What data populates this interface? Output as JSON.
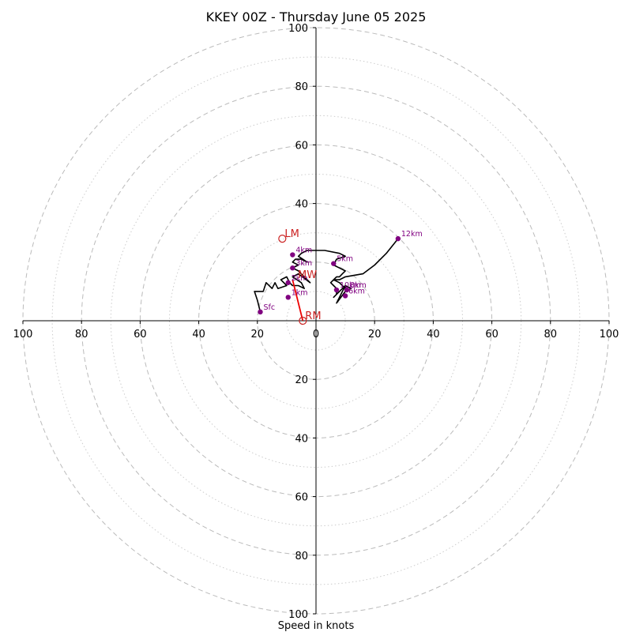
{
  "chart_data": {
    "type": "scatter",
    "subtype": "hodograph",
    "title": "KKEY 00Z - Thursday June 05 2025",
    "xlabel": "Speed in knots",
    "ylabel": "",
    "xlim": [
      -100,
      100
    ],
    "ylim": [
      -100,
      100
    ],
    "grid": true,
    "ring_major": [
      20,
      40,
      60,
      80,
      100
    ],
    "ring_minor": [
      10,
      30,
      50,
      70,
      90
    ],
    "x_ticks": [
      {
        "v": -100,
        "label": "100"
      },
      {
        "v": -80,
        "label": "80"
      },
      {
        "v": -60,
        "label": "60"
      },
      {
        "v": -40,
        "label": "40"
      },
      {
        "v": -20,
        "label": "20"
      },
      {
        "v": 0,
        "label": "0"
      },
      {
        "v": 20,
        "label": "20"
      },
      {
        "v": 40,
        "label": "40"
      },
      {
        "v": 60,
        "label": "60"
      },
      {
        "v": 80,
        "label": "80"
      },
      {
        "v": 100,
        "label": "100"
      }
    ],
    "y_ticks": [
      {
        "v": 100,
        "label": "100"
      },
      {
        "v": 80,
        "label": "80"
      },
      {
        "v": 60,
        "label": "60"
      },
      {
        "v": 40,
        "label": "40"
      },
      {
        "v": -20,
        "label": "20"
      },
      {
        "v": -40,
        "label": "40"
      },
      {
        "v": -60,
        "label": "60"
      },
      {
        "v": -80,
        "label": "80"
      },
      {
        "v": -100,
        "label": "100"
      }
    ],
    "hodograph_trace": [
      [
        -19,
        3
      ],
      [
        -20,
        7
      ],
      [
        -21,
        10
      ],
      [
        -18,
        10
      ],
      [
        -17,
        13
      ],
      [
        -15,
        11
      ],
      [
        -14,
        13
      ],
      [
        -13,
        11
      ],
      [
        -10,
        12
      ],
      [
        -12,
        14
      ],
      [
        -10,
        15
      ],
      [
        -9,
        13
      ],
      [
        -8,
        12
      ],
      [
        -6,
        12
      ],
      [
        -4,
        11
      ],
      [
        -5,
        13
      ],
      [
        -8,
        15
      ],
      [
        -6,
        16
      ],
      [
        -2,
        13
      ],
      [
        -6,
        17
      ],
      [
        -8,
        18
      ],
      [
        -6,
        19
      ],
      [
        -8,
        20
      ],
      [
        -7,
        21
      ],
      [
        -5,
        21
      ],
      [
        -3,
        20
      ],
      [
        -6,
        22
      ],
      [
        -5,
        23
      ],
      [
        -3,
        24
      ],
      [
        0,
        24
      ],
      [
        3,
        24
      ],
      [
        8,
        23
      ],
      [
        10,
        22
      ],
      [
        7,
        21
      ],
      [
        6,
        19
      ],
      [
        8,
        18
      ],
      [
        10,
        17
      ],
      [
        9,
        16
      ],
      [
        8,
        15
      ],
      [
        7,
        15
      ],
      [
        6,
        14
      ],
      [
        5,
        13
      ],
      [
        6,
        12
      ],
      [
        7,
        11
      ],
      [
        7,
        9
      ],
      [
        6,
        8
      ],
      [
        9,
        11
      ],
      [
        10,
        12
      ],
      [
        12,
        11
      ],
      [
        10,
        10
      ],
      [
        7,
        6
      ],
      [
        10,
        12
      ],
      [
        10,
        11
      ],
      [
        8,
        13
      ],
      [
        6,
        14
      ],
      [
        8,
        14
      ],
      [
        10,
        15
      ],
      [
        16,
        16
      ],
      [
        20,
        19
      ],
      [
        24,
        23
      ],
      [
        28,
        28
      ]
    ],
    "height_markers": [
      {
        "label": "Sfc",
        "x": -19,
        "y": 3
      },
      {
        "label": "1km",
        "x": -9.5,
        "y": 8
      },
      {
        "label": "2km",
        "x": -9.5,
        "y": 13
      },
      {
        "label": "3km",
        "x": -8,
        "y": 18
      },
      {
        "label": "4km",
        "x": -8,
        "y": 22.5
      },
      {
        "label": "5km",
        "x": 6,
        "y": 19.5
      },
      {
        "label": "6km",
        "x": 10,
        "y": 8.5
      },
      {
        "label": "8km",
        "x": 10.5,
        "y": 10.5
      },
      {
        "label": "10km",
        "x": 7,
        "y": 10.5
      },
      {
        "label": "12km",
        "x": 28,
        "y": 28
      }
    ],
    "storm_motion": [
      {
        "label": "LM",
        "x": -11.5,
        "y": 28
      },
      {
        "label": "RM",
        "x": -4.5,
        "y": 0
      },
      {
        "label": "MW",
        "x": -7,
        "y": 14
      }
    ],
    "shear_vector": {
      "from": [
        -4.5,
        0
      ],
      "to": [
        -8,
        14
      ]
    },
    "colors": {
      "trace": "#000000",
      "marker": "#800080",
      "storm_motion": "#cc2222",
      "shear": "#ee0000",
      "grid": "#bbbbbb",
      "axis": "#000000"
    }
  }
}
